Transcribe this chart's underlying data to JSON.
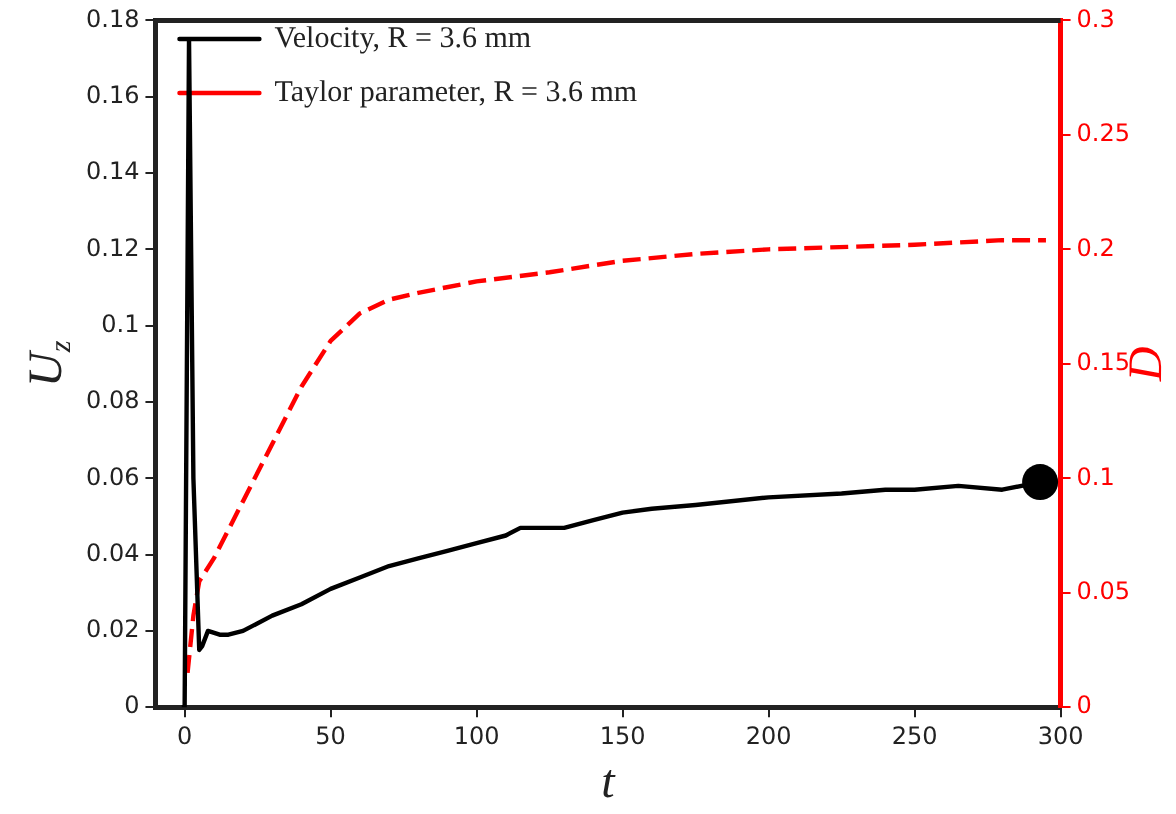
{
  "chart_data": {
    "type": "line",
    "xlabel": "t",
    "ylabel": "U$_{z}$",
    "y2label": "D",
    "xlim": [
      -10,
      300
    ],
    "xticks": [
      0,
      50,
      100,
      150,
      200,
      250,
      300
    ],
    "ylim": [
      0,
      0.18
    ],
    "yticks": [
      0,
      0.02,
      0.04,
      0.06,
      0.08,
      0.1,
      0.12,
      0.14,
      0.16,
      0.18
    ],
    "y2lim": [
      0,
      0.3
    ],
    "y2ticks": [
      0,
      0.05,
      0.1,
      0.15,
      0.2,
      0.25,
      0.3
    ],
    "grid": false,
    "legend": "top left",
    "marker": "none",
    "series": [
      {
        "name": "Velocity, R = 3.6 mm",
        "color": "#000000",
        "line_style": "solid",
        "x": [
          -1,
          0,
          1.5,
          3,
          5,
          6,
          8,
          12,
          15,
          20,
          30,
          40,
          50,
          60,
          70,
          80,
          90,
          100,
          110,
          115,
          125,
          130,
          140,
          150,
          160,
          175,
          200,
          225,
          240,
          250,
          265,
          280,
          293
        ],
        "values": [
          0,
          0,
          0.175,
          0.06,
          0.015,
          0.016,
          0.02,
          0.019,
          0.019,
          0.02,
          0.024,
          0.027,
          0.031,
          0.034,
          0.037,
          0.039,
          0.041,
          0.043,
          0.045,
          0.047,
          0.047,
          0.047,
          0.049,
          0.051,
          0.052,
          0.053,
          0.055,
          0.056,
          0.057,
          0.057,
          0.058,
          0.057,
          0.059
        ]
      },
      {
        "type": "scatter",
        "color": "#000000",
        "marker": "circle",
        "x": [
          293
        ],
        "values": [
          0.059
        ]
      },
      {
        "name": "Taylor parameter, R = 3.6 mm",
        "color": "#ff0000",
        "line_style": "dashed",
        "axis": "y2",
        "x": [
          1,
          3,
          5,
          10,
          20,
          30,
          40,
          50,
          60,
          70,
          80,
          100,
          125,
          150,
          175,
          200,
          250,
          280,
          295
        ],
        "values": [
          0.015,
          0.04,
          0.055,
          0.065,
          0.09,
          0.115,
          0.14,
          0.16,
          0.172,
          0.178,
          0.181,
          0.186,
          0.19,
          0.195,
          0.198,
          0.2,
          0.202,
          0.204,
          0.204
        ]
      }
    ]
  }
}
